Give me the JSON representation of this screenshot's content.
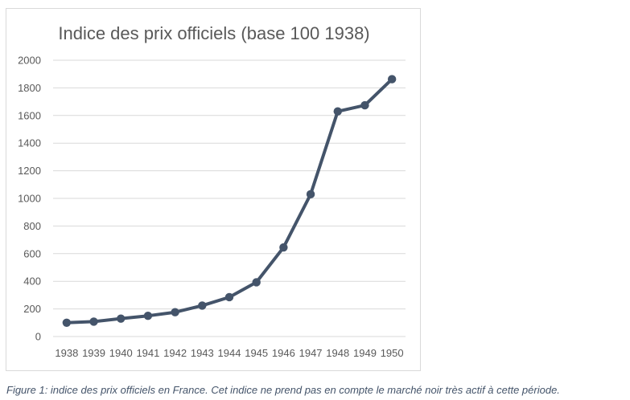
{
  "chart_data": {
    "type": "line",
    "title": "Indice des prix officiels (base 100 1938)",
    "xlabel": "",
    "ylabel": "",
    "categories": [
      "1938",
      "1939",
      "1940",
      "1941",
      "1942",
      "1943",
      "1944",
      "1945",
      "1946",
      "1947",
      "1948",
      "1949",
      "1950"
    ],
    "series": [
      {
        "values": [
          100,
          108,
          130,
          150,
          176,
          224,
          285,
          393,
          645,
          1030,
          1630,
          1674,
          1863
        ]
      }
    ],
    "ylim": [
      0,
      2000
    ],
    "yticks": [
      0,
      200,
      400,
      600,
      800,
      1000,
      1200,
      1400,
      1600,
      1800,
      2000
    ],
    "grid": true,
    "markers": true,
    "line_color": "#44546a",
    "grid_color": "#d9d9d9"
  },
  "caption": "Figure 1: indice des prix officiels en France. Cet indice ne prend pas en compte le marché noir très actif à cette période."
}
